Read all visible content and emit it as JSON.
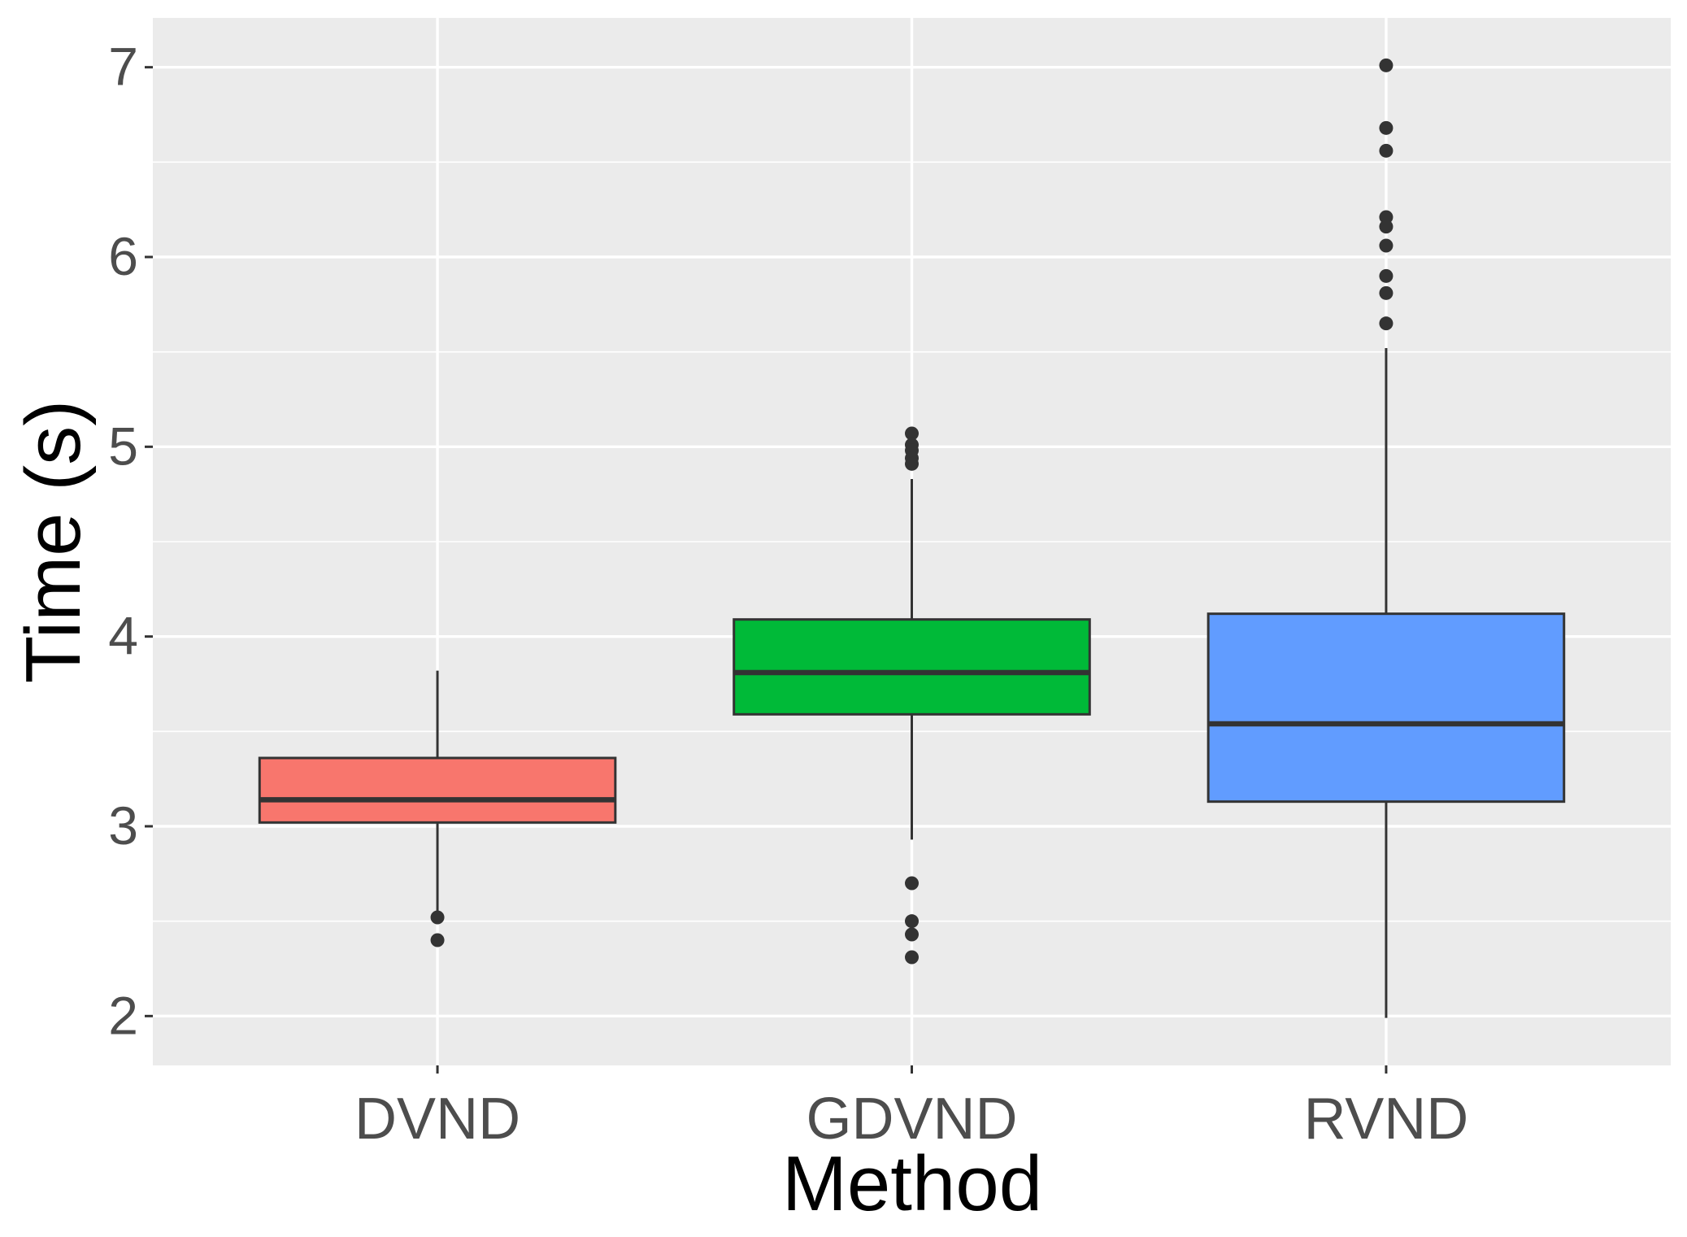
{
  "chart_data": {
    "type": "boxplot",
    "title": "",
    "xlabel": "Method",
    "ylabel": "Time (s)",
    "ylim": [
      1.74,
      7.26
    ],
    "yticks": [
      2,
      3,
      4,
      5,
      6,
      7
    ],
    "grid": true,
    "legend": "none",
    "background_color": "#ebebeb",
    "gridline_color": "#ffffff",
    "outline_color": "#333333",
    "categories": [
      "DVND",
      "GDVND",
      "RVND"
    ],
    "boxes": [
      {
        "name": "DVND",
        "color": "#f8766d",
        "whisker_low": 2.55,
        "q1": 3.02,
        "median": 3.14,
        "q3": 3.36,
        "whisker_high": 3.82,
        "outliers": [
          2.52,
          2.4
        ]
      },
      {
        "name": "GDVND",
        "color": "#00ba38",
        "whisker_low": 2.93,
        "q1": 3.59,
        "median": 3.81,
        "q3": 4.09,
        "whisker_high": 4.83,
        "outliers": [
          5.07,
          5.01,
          4.98,
          4.94,
          4.91,
          2.7,
          2.5,
          2.43,
          2.31
        ]
      },
      {
        "name": "RVND",
        "color": "#619cff",
        "whisker_low": 1.99,
        "q1": 3.13,
        "median": 3.54,
        "q3": 4.12,
        "whisker_high": 5.52,
        "outliers": [
          7.01,
          6.68,
          6.56,
          6.21,
          6.16,
          6.06,
          5.9,
          5.81,
          5.65
        ]
      }
    ]
  }
}
